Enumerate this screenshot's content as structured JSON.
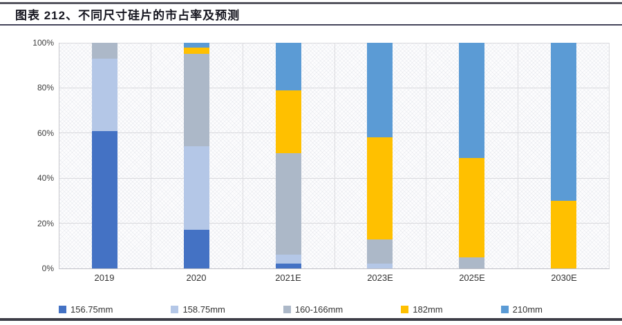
{
  "header": {
    "title": "图表 212、不同尺寸硅片的市占率及预测"
  },
  "colors": {
    "series_156": "#4472C4",
    "series_158": "#B4C7E7",
    "series_160_166": "#ACB8C8",
    "series_182": "#FFC000",
    "series_210": "#5B9BD5",
    "top_rule": "#55555f",
    "bottom_rule": "#3d3d47"
  },
  "chart_data": {
    "type": "bar",
    "stacked": true,
    "title": "图表 212、不同尺寸硅片的市占率及预测",
    "categories": [
      "2019",
      "2020",
      "2021E",
      "2023E",
      "2025E",
      "2030E"
    ],
    "series": [
      {
        "name": "156.75mm",
        "color": "#4472C4",
        "values": [
          61,
          17,
          2,
          0,
          0,
          0
        ]
      },
      {
        "name": "158.75mm",
        "color": "#B4C7E7",
        "values": [
          32,
          37,
          4,
          2,
          0,
          0
        ]
      },
      {
        "name": "160-166mm",
        "color": "#ACB8C8",
        "values": [
          7,
          41,
          45,
          11,
          5,
          0
        ]
      },
      {
        "name": "182mm",
        "color": "#FFC000",
        "values": [
          0,
          3,
          28,
          45,
          44,
          30
        ]
      },
      {
        "name": "210mm",
        "color": "#5B9BD5",
        "values": [
          0,
          2,
          21,
          42,
          51,
          70
        ]
      }
    ],
    "xlabel": "",
    "ylabel": "",
    "ylim": [
      0,
      100
    ],
    "yticks": [
      "0%",
      "20%",
      "40%",
      "60%",
      "80%",
      "100%"
    ],
    "grid": true,
    "legend_position": "bottom"
  }
}
